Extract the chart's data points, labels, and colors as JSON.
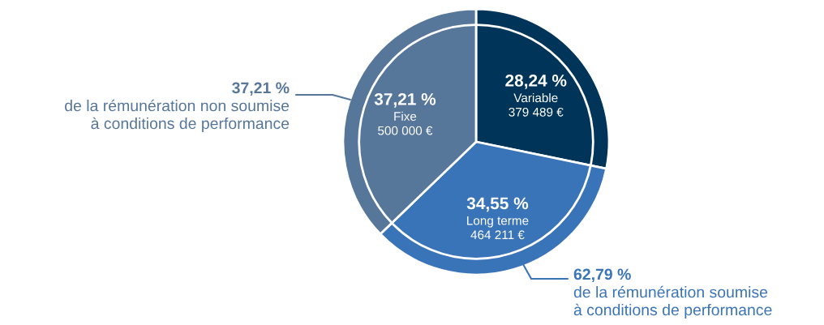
{
  "chart_data": {
    "type": "pie",
    "categories": [
      "Variable\n379 489 €",
      "Long terme\n464 211 €",
      "Fixe\n500 000 €"
    ],
    "values": [
      28.24,
      34.55,
      37.21
    ],
    "value_labels": [
      "28,24 %",
      "34,55 %",
      "37,21 %"
    ],
    "colors": [
      "#003459",
      "#3a74b8",
      "#56769a"
    ],
    "annotations": [
      "62,79 %\nde la rémunération soumise\nà conditions de performance",
      "37,21 %\nde la rémunération non soumise\nà conditions de performance"
    ],
    "legend": false
  }
}
